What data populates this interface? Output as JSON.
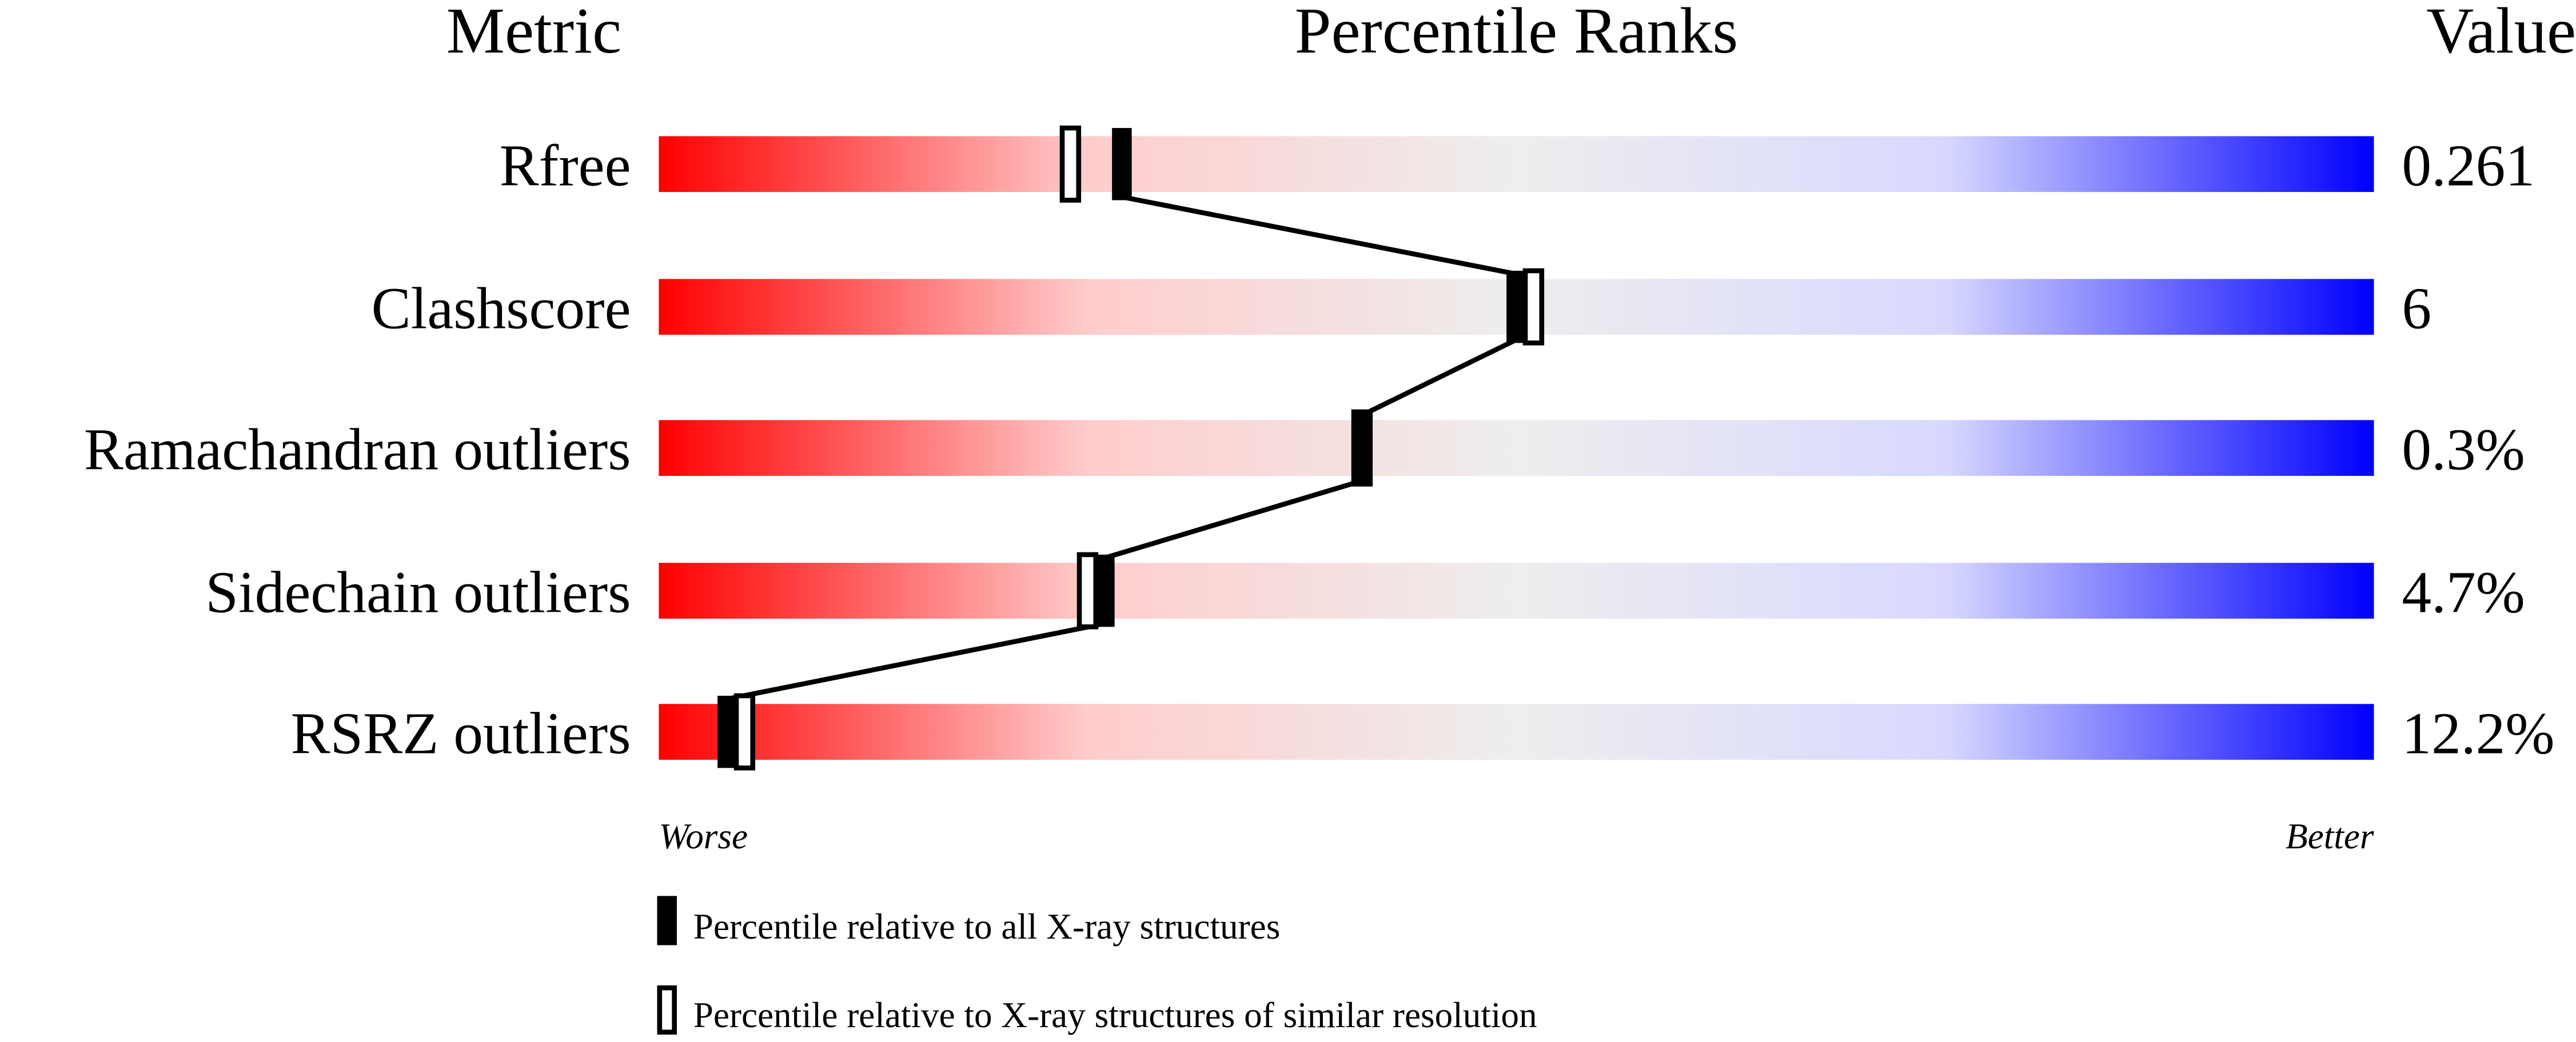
{
  "chart_data": {
    "type": "percentile-strip",
    "headers": {
      "metric": "Metric",
      "ranks": "Percentile Ranks",
      "value": "Value"
    },
    "xlim": [
      0,
      100
    ],
    "axis_labels": {
      "left": "Worse",
      "right": "Better"
    },
    "gradient_colors": [
      "#ff0000",
      "#ffcccc",
      "#eeeeee",
      "#d8d8ff",
      "#0000ff"
    ],
    "metrics": [
      {
        "name": "Rfree",
        "value": "0.261",
        "percentile_all": 27,
        "percentile_similar": 24
      },
      {
        "name": "Clashscore",
        "value": "6",
        "percentile_all": 50,
        "percentile_similar": 51
      },
      {
        "name": "Ramachandran outliers",
        "value": "0.3%",
        "percentile_all": 41,
        "percentile_similar": 41
      },
      {
        "name": "Sidechain outliers",
        "value": "4.7%",
        "percentile_all": 26,
        "percentile_similar": 25
      },
      {
        "name": "RSRZ outliers",
        "value": "12.2%",
        "percentile_all": 4,
        "percentile_similar": 5
      }
    ],
    "legend": {
      "all": "Percentile relative to all X-ray structures",
      "similar": "Percentile relative to X-ray structures of similar resolution"
    }
  }
}
